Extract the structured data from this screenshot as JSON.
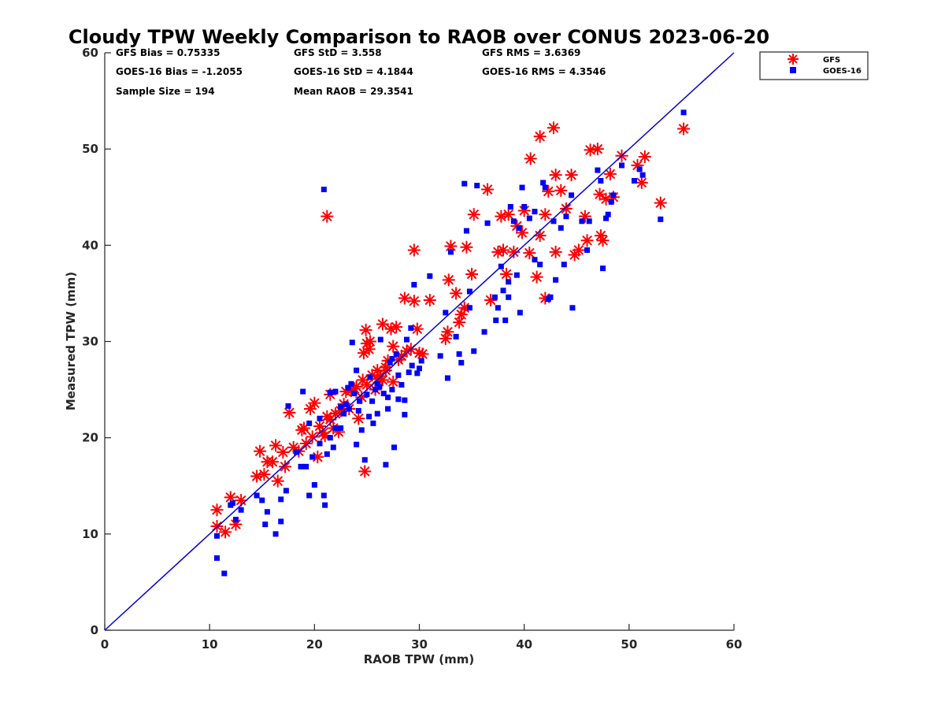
{
  "chart_data": {
    "type": "scatter",
    "title": "Cloudy TPW Weekly Comparison to RAOB over CONUS 2023-06-20",
    "xlabel": "RAOB TPW (mm)",
    "ylabel": "Measured TPW (mm)",
    "xlim": [
      0,
      60
    ],
    "ylim": [
      0,
      60
    ],
    "xticks": [
      "0",
      "10",
      "20",
      "30",
      "40",
      "50",
      "60"
    ],
    "yticks": [
      "0",
      "10",
      "20",
      "30",
      "40",
      "50",
      "60"
    ],
    "grid": false,
    "legend_position": "top-right, outside plot",
    "reference_line": {
      "x": [
        0,
        60
      ],
      "y": [
        0,
        60
      ],
      "color": "#0000e0"
    },
    "stats": [
      [
        "GFS Bias = 0.75335",
        "GFS StD = 3.558",
        "GFS RMS = 3.6369"
      ],
      [
        "GOES-16 Bias = -1.2055",
        "GOES-16 StD = 4.1844",
        "GOES-16 RMS = 4.3546"
      ],
      [
        "Sample Size = 194",
        "Mean RAOB = 29.3541",
        ""
      ]
    ],
    "series": [
      {
        "name": "GFS",
        "marker": "asterisk",
        "color": "#ff0000",
        "points": [
          [
            10.7,
            12.5
          ],
          [
            10.7,
            10.8
          ],
          [
            11.5,
            10.2
          ],
          [
            12.0,
            13.8
          ],
          [
            12.5,
            11.0
          ],
          [
            13.0,
            13.5
          ],
          [
            14.5,
            16.0
          ],
          [
            14.8,
            18.6
          ],
          [
            15.2,
            16.2
          ],
          [
            15.5,
            17.5
          ],
          [
            16.0,
            17.5
          ],
          [
            16.3,
            19.2
          ],
          [
            16.5,
            15.5
          ],
          [
            17.0,
            18.5
          ],
          [
            17.2,
            17.0
          ],
          [
            17.6,
            22.6
          ],
          [
            18.0,
            19.0
          ],
          [
            18.5,
            18.6
          ],
          [
            18.8,
            20.8
          ],
          [
            19.0,
            21.0
          ],
          [
            19.2,
            19.4
          ],
          [
            19.6,
            23.0
          ],
          [
            19.8,
            20.1
          ],
          [
            20.0,
            23.6
          ],
          [
            20.3,
            18.0
          ],
          [
            20.5,
            21.2
          ],
          [
            20.8,
            20.5
          ],
          [
            21.0,
            20.2
          ],
          [
            21.2,
            22.2
          ],
          [
            21.5,
            21.9
          ],
          [
            21.8,
            21.0
          ],
          [
            22.0,
            22.5
          ],
          [
            22.3,
            20.6
          ],
          [
            22.5,
            22.8
          ],
          [
            22.8,
            23.5
          ],
          [
            23.0,
            24.8
          ],
          [
            23.3,
            23.0
          ],
          [
            23.5,
            24.9
          ],
          [
            23.8,
            25.1
          ],
          [
            24.0,
            25.3
          ],
          [
            24.2,
            22.0
          ],
          [
            24.5,
            24.2
          ],
          [
            24.7,
            28.8
          ],
          [
            24.9,
            31.2
          ],
          [
            25.0,
            29.8
          ],
          [
            25.2,
            29.2
          ],
          [
            25.5,
            26.5
          ],
          [
            25.8,
            25.0
          ],
          [
            26.0,
            26.1
          ],
          [
            26.3,
            26.4
          ],
          [
            26.5,
            31.8
          ],
          [
            26.8,
            27.0
          ],
          [
            27.0,
            28.0
          ],
          [
            27.3,
            31.3
          ],
          [
            27.5,
            25.8
          ],
          [
            27.8,
            31.5
          ],
          [
            28.0,
            28.1
          ],
          [
            28.3,
            28.5
          ],
          [
            28.6,
            34.5
          ],
          [
            28.8,
            29.0
          ],
          [
            29.2,
            29.2
          ],
          [
            29.5,
            34.2
          ],
          [
            29.8,
            31.3
          ],
          [
            30.0,
            28.8
          ],
          [
            30.3,
            28.7
          ],
          [
            31.0,
            34.3
          ],
          [
            32.5,
            30.3
          ],
          [
            32.7,
            31.0
          ],
          [
            32.8,
            36.4
          ],
          [
            33.0,
            39.9
          ],
          [
            33.5,
            35.0
          ],
          [
            33.8,
            32.0
          ],
          [
            34.0,
            32.8
          ],
          [
            34.3,
            33.5
          ],
          [
            34.5,
            39.8
          ],
          [
            35.0,
            37.0
          ],
          [
            35.2,
            43.2
          ],
          [
            36.5,
            45.8
          ],
          [
            36.8,
            34.3
          ],
          [
            37.5,
            39.3
          ],
          [
            37.8,
            43.0
          ],
          [
            38.0,
            39.5
          ],
          [
            38.3,
            37.0
          ],
          [
            38.5,
            43.2
          ],
          [
            39.0,
            39.3
          ],
          [
            39.3,
            42.0
          ],
          [
            39.8,
            41.3
          ],
          [
            40.0,
            43.6
          ],
          [
            40.5,
            39.2
          ],
          [
            40.6,
            49.0
          ],
          [
            41.2,
            36.7
          ],
          [
            41.5,
            41.0
          ],
          [
            41.5,
            51.3
          ],
          [
            42.0,
            34.5
          ],
          [
            42.0,
            43.2
          ],
          [
            42.3,
            45.6
          ],
          [
            42.8,
            52.2
          ],
          [
            43.0,
            39.3
          ],
          [
            43.0,
            47.3
          ],
          [
            43.5,
            45.7
          ],
          [
            44.0,
            43.8
          ],
          [
            44.5,
            47.3
          ],
          [
            44.8,
            39.0
          ],
          [
            45.2,
            39.5
          ],
          [
            45.8,
            43.0
          ],
          [
            46.0,
            40.5
          ],
          [
            46.3,
            49.9
          ],
          [
            47.0,
            50.0
          ],
          [
            47.2,
            45.3
          ],
          [
            47.3,
            41.0
          ],
          [
            47.5,
            40.5
          ],
          [
            47.8,
            44.8
          ],
          [
            48.2,
            47.4
          ],
          [
            48.5,
            45.0
          ],
          [
            49.3,
            49.3
          ],
          [
            50.8,
            48.3
          ],
          [
            51.2,
            46.5
          ],
          [
            51.5,
            49.2
          ],
          [
            53.0,
            44.4
          ],
          [
            55.2,
            52.1
          ],
          [
            29.5,
            39.5
          ],
          [
            27.5,
            29.5
          ],
          [
            26.0,
            27.0
          ],
          [
            26.8,
            27.3
          ],
          [
            25.3,
            30.0
          ],
          [
            24.6,
            26.0
          ],
          [
            24.8,
            16.5
          ],
          [
            21.2,
            43.0
          ],
          [
            21.5,
            24.5
          ],
          [
            25.0,
            25.5
          ],
          [
            26.5,
            26.0
          ]
        ]
      },
      {
        "name": "GOES-16",
        "marker": "square",
        "color": "#0000ff",
        "points": [
          [
            10.7,
            9.8
          ],
          [
            10.7,
            7.5
          ],
          [
            11.4,
            5.9
          ],
          [
            12.0,
            13.0
          ],
          [
            12.2,
            13.2
          ],
          [
            12.5,
            11.5
          ],
          [
            13.0,
            12.5
          ],
          [
            14.5,
            14.0
          ],
          [
            15.0,
            13.5
          ],
          [
            15.3,
            11.0
          ],
          [
            15.5,
            12.3
          ],
          [
            16.3,
            10.0
          ],
          [
            16.8,
            11.3
          ],
          [
            16.8,
            13.6
          ],
          [
            17.3,
            14.5
          ],
          [
            17.5,
            23.3
          ],
          [
            18.3,
            18.5
          ],
          [
            18.7,
            17.0
          ],
          [
            18.9,
            24.8
          ],
          [
            19.2,
            17.0
          ],
          [
            19.5,
            14.0
          ],
          [
            19.8,
            18.0
          ],
          [
            20.0,
            15.1
          ],
          [
            20.5,
            19.4
          ],
          [
            20.9,
            45.8
          ],
          [
            20.9,
            14.0
          ],
          [
            21.0,
            13.0
          ],
          [
            21.2,
            18.3
          ],
          [
            21.5,
            24.7
          ],
          [
            21.8,
            19.0
          ],
          [
            22.0,
            21.0
          ],
          [
            22.5,
            21.0
          ],
          [
            22.8,
            22.5
          ],
          [
            23.0,
            23.5
          ],
          [
            23.3,
            23.0
          ],
          [
            23.6,
            29.9
          ],
          [
            23.8,
            24.6
          ],
          [
            24.0,
            19.3
          ],
          [
            24.2,
            22.8
          ],
          [
            24.5,
            20.8
          ],
          [
            24.8,
            17.7
          ],
          [
            25.0,
            24.5
          ],
          [
            25.3,
            26.3
          ],
          [
            25.6,
            21.5
          ],
          [
            25.8,
            25.0
          ],
          [
            26.0,
            22.5
          ],
          [
            26.3,
            30.2
          ],
          [
            26.6,
            24.6
          ],
          [
            26.8,
            17.2
          ],
          [
            27.0,
            23.0
          ],
          [
            27.2,
            27.8
          ],
          [
            27.4,
            28.2
          ],
          [
            27.6,
            19.0
          ],
          [
            27.8,
            28.7
          ],
          [
            28.0,
            24.0
          ],
          [
            28.3,
            25.5
          ],
          [
            28.6,
            22.4
          ],
          [
            28.8,
            30.2
          ],
          [
            29.0,
            26.8
          ],
          [
            29.3,
            27.5
          ],
          [
            29.5,
            35.9
          ],
          [
            29.8,
            26.7
          ],
          [
            30.2,
            28.0
          ],
          [
            31.0,
            36.8
          ],
          [
            32.0,
            28.5
          ],
          [
            32.5,
            33.0
          ],
          [
            32.7,
            26.2
          ],
          [
            33.0,
            39.3
          ],
          [
            33.5,
            30.5
          ],
          [
            34.0,
            27.8
          ],
          [
            34.3,
            46.4
          ],
          [
            34.5,
            41.5
          ],
          [
            34.8,
            35.2
          ],
          [
            35.2,
            29.0
          ],
          [
            35.5,
            46.2
          ],
          [
            36.2,
            31.0
          ],
          [
            36.5,
            42.3
          ],
          [
            37.2,
            34.6
          ],
          [
            37.3,
            32.2
          ],
          [
            37.8,
            37.8
          ],
          [
            38.0,
            35.3
          ],
          [
            38.2,
            32.2
          ],
          [
            38.5,
            34.6
          ],
          [
            38.7,
            44.0
          ],
          [
            39.0,
            42.5
          ],
          [
            39.3,
            36.9
          ],
          [
            39.6,
            33.0
          ],
          [
            39.8,
            46.0
          ],
          [
            40.0,
            44.0
          ],
          [
            40.5,
            42.8
          ],
          [
            41.0,
            43.5
          ],
          [
            41.5,
            38.0
          ],
          [
            41.8,
            46.5
          ],
          [
            42.0,
            46.0
          ],
          [
            42.3,
            34.4
          ],
          [
            42.8,
            42.5
          ],
          [
            43.0,
            36.4
          ],
          [
            43.5,
            41.8
          ],
          [
            44.0,
            43.0
          ],
          [
            44.5,
            45.2
          ],
          [
            44.6,
            33.5
          ],
          [
            45.5,
            42.5
          ],
          [
            46.0,
            39.5
          ],
          [
            46.2,
            42.5
          ],
          [
            47.0,
            47.8
          ],
          [
            47.3,
            46.7
          ],
          [
            47.5,
            37.6
          ],
          [
            47.8,
            42.8
          ],
          [
            48.3,
            44.5
          ],
          [
            48.5,
            45.2
          ],
          [
            49.3,
            48.3
          ],
          [
            50.5,
            46.7
          ],
          [
            51.0,
            47.9
          ],
          [
            51.3,
            47.3
          ],
          [
            53.0,
            42.7
          ],
          [
            55.2,
            53.8
          ],
          [
            22.0,
            24.8
          ],
          [
            23.5,
            25.6
          ],
          [
            24.0,
            27.0
          ],
          [
            25.5,
            23.8
          ],
          [
            26.2,
            25.3
          ],
          [
            27.0,
            24.2
          ],
          [
            28.0,
            26.5
          ],
          [
            29.2,
            31.4
          ],
          [
            30.0,
            27.2
          ],
          [
            33.8,
            28.7
          ],
          [
            34.8,
            33.5
          ],
          [
            37.5,
            33.5
          ],
          [
            38.5,
            36.2
          ],
          [
            39.5,
            41.8
          ],
          [
            41.0,
            38.5
          ],
          [
            42.5,
            34.6
          ],
          [
            43.8,
            38.0
          ],
          [
            48.0,
            43.2
          ],
          [
            19.5,
            21.5
          ],
          [
            20.5,
            22.0
          ],
          [
            21.5,
            20.0
          ],
          [
            22.5,
            23.2
          ],
          [
            23.2,
            25.2
          ],
          [
            24.3,
            23.8
          ],
          [
            25.2,
            22.2
          ],
          [
            26.0,
            25.6
          ],
          [
            27.4,
            25.0
          ],
          [
            28.6,
            23.9
          ]
        ]
      }
    ]
  }
}
